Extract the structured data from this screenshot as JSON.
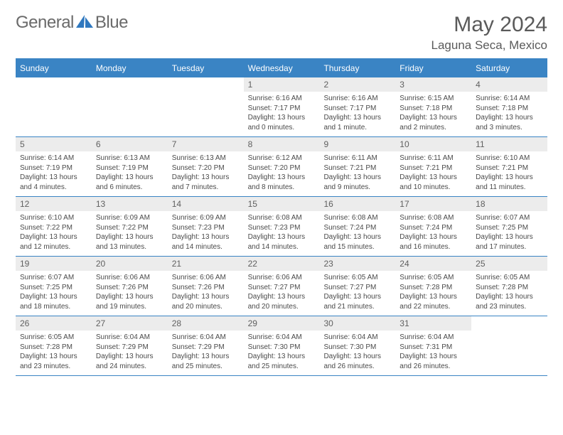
{
  "brand": {
    "name1": "General",
    "name2": "Blue"
  },
  "title": "May 2024",
  "location": "Laguna Seca, Mexico",
  "colors": {
    "accent": "#3a84c4",
    "header_text": "#ffffff",
    "daynum_bg": "#ececec",
    "text": "#4a4a4a",
    "title_color": "#5a5a5a",
    "logo_gray": "#6a6a6a",
    "logo_blue": "#2f78bf"
  },
  "dow": [
    "Sunday",
    "Monday",
    "Tuesday",
    "Wednesday",
    "Thursday",
    "Friday",
    "Saturday"
  ],
  "weeks": [
    [
      {
        "n": "",
        "sr": "",
        "ss": "",
        "dl": ""
      },
      {
        "n": "",
        "sr": "",
        "ss": "",
        "dl": ""
      },
      {
        "n": "",
        "sr": "",
        "ss": "",
        "dl": ""
      },
      {
        "n": "1",
        "sr": "Sunrise: 6:16 AM",
        "ss": "Sunset: 7:17 PM",
        "dl": "Daylight: 13 hours and 0 minutes."
      },
      {
        "n": "2",
        "sr": "Sunrise: 6:16 AM",
        "ss": "Sunset: 7:17 PM",
        "dl": "Daylight: 13 hours and 1 minute."
      },
      {
        "n": "3",
        "sr": "Sunrise: 6:15 AM",
        "ss": "Sunset: 7:18 PM",
        "dl": "Daylight: 13 hours and 2 minutes."
      },
      {
        "n": "4",
        "sr": "Sunrise: 6:14 AM",
        "ss": "Sunset: 7:18 PM",
        "dl": "Daylight: 13 hours and 3 minutes."
      }
    ],
    [
      {
        "n": "5",
        "sr": "Sunrise: 6:14 AM",
        "ss": "Sunset: 7:19 PM",
        "dl": "Daylight: 13 hours and 4 minutes."
      },
      {
        "n": "6",
        "sr": "Sunrise: 6:13 AM",
        "ss": "Sunset: 7:19 PM",
        "dl": "Daylight: 13 hours and 6 minutes."
      },
      {
        "n": "7",
        "sr": "Sunrise: 6:13 AM",
        "ss": "Sunset: 7:20 PM",
        "dl": "Daylight: 13 hours and 7 minutes."
      },
      {
        "n": "8",
        "sr": "Sunrise: 6:12 AM",
        "ss": "Sunset: 7:20 PM",
        "dl": "Daylight: 13 hours and 8 minutes."
      },
      {
        "n": "9",
        "sr": "Sunrise: 6:11 AM",
        "ss": "Sunset: 7:21 PM",
        "dl": "Daylight: 13 hours and 9 minutes."
      },
      {
        "n": "10",
        "sr": "Sunrise: 6:11 AM",
        "ss": "Sunset: 7:21 PM",
        "dl": "Daylight: 13 hours and 10 minutes."
      },
      {
        "n": "11",
        "sr": "Sunrise: 6:10 AM",
        "ss": "Sunset: 7:21 PM",
        "dl": "Daylight: 13 hours and 11 minutes."
      }
    ],
    [
      {
        "n": "12",
        "sr": "Sunrise: 6:10 AM",
        "ss": "Sunset: 7:22 PM",
        "dl": "Daylight: 13 hours and 12 minutes."
      },
      {
        "n": "13",
        "sr": "Sunrise: 6:09 AM",
        "ss": "Sunset: 7:22 PM",
        "dl": "Daylight: 13 hours and 13 minutes."
      },
      {
        "n": "14",
        "sr": "Sunrise: 6:09 AM",
        "ss": "Sunset: 7:23 PM",
        "dl": "Daylight: 13 hours and 14 minutes."
      },
      {
        "n": "15",
        "sr": "Sunrise: 6:08 AM",
        "ss": "Sunset: 7:23 PM",
        "dl": "Daylight: 13 hours and 14 minutes."
      },
      {
        "n": "16",
        "sr": "Sunrise: 6:08 AM",
        "ss": "Sunset: 7:24 PM",
        "dl": "Daylight: 13 hours and 15 minutes."
      },
      {
        "n": "17",
        "sr": "Sunrise: 6:08 AM",
        "ss": "Sunset: 7:24 PM",
        "dl": "Daylight: 13 hours and 16 minutes."
      },
      {
        "n": "18",
        "sr": "Sunrise: 6:07 AM",
        "ss": "Sunset: 7:25 PM",
        "dl": "Daylight: 13 hours and 17 minutes."
      }
    ],
    [
      {
        "n": "19",
        "sr": "Sunrise: 6:07 AM",
        "ss": "Sunset: 7:25 PM",
        "dl": "Daylight: 13 hours and 18 minutes."
      },
      {
        "n": "20",
        "sr": "Sunrise: 6:06 AM",
        "ss": "Sunset: 7:26 PM",
        "dl": "Daylight: 13 hours and 19 minutes."
      },
      {
        "n": "21",
        "sr": "Sunrise: 6:06 AM",
        "ss": "Sunset: 7:26 PM",
        "dl": "Daylight: 13 hours and 20 minutes."
      },
      {
        "n": "22",
        "sr": "Sunrise: 6:06 AM",
        "ss": "Sunset: 7:27 PM",
        "dl": "Daylight: 13 hours and 20 minutes."
      },
      {
        "n": "23",
        "sr": "Sunrise: 6:05 AM",
        "ss": "Sunset: 7:27 PM",
        "dl": "Daylight: 13 hours and 21 minutes."
      },
      {
        "n": "24",
        "sr": "Sunrise: 6:05 AM",
        "ss": "Sunset: 7:28 PM",
        "dl": "Daylight: 13 hours and 22 minutes."
      },
      {
        "n": "25",
        "sr": "Sunrise: 6:05 AM",
        "ss": "Sunset: 7:28 PM",
        "dl": "Daylight: 13 hours and 23 minutes."
      }
    ],
    [
      {
        "n": "26",
        "sr": "Sunrise: 6:05 AM",
        "ss": "Sunset: 7:28 PM",
        "dl": "Daylight: 13 hours and 23 minutes."
      },
      {
        "n": "27",
        "sr": "Sunrise: 6:04 AM",
        "ss": "Sunset: 7:29 PM",
        "dl": "Daylight: 13 hours and 24 minutes."
      },
      {
        "n": "28",
        "sr": "Sunrise: 6:04 AM",
        "ss": "Sunset: 7:29 PM",
        "dl": "Daylight: 13 hours and 25 minutes."
      },
      {
        "n": "29",
        "sr": "Sunrise: 6:04 AM",
        "ss": "Sunset: 7:30 PM",
        "dl": "Daylight: 13 hours and 25 minutes."
      },
      {
        "n": "30",
        "sr": "Sunrise: 6:04 AM",
        "ss": "Sunset: 7:30 PM",
        "dl": "Daylight: 13 hours and 26 minutes."
      },
      {
        "n": "31",
        "sr": "Sunrise: 6:04 AM",
        "ss": "Sunset: 7:31 PM",
        "dl": "Daylight: 13 hours and 26 minutes."
      },
      {
        "n": "",
        "sr": "",
        "ss": "",
        "dl": ""
      }
    ]
  ]
}
